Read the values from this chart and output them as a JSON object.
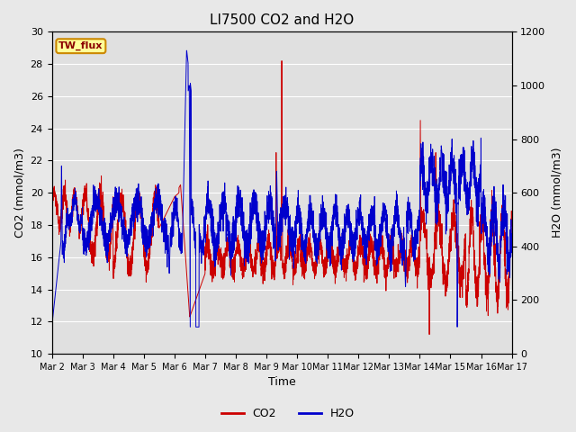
{
  "title": "LI7500 CO2 and H2O",
  "xlabel": "Time",
  "ylabel_left": "CO2 (mmol/m3)",
  "ylabel_right": "H2O (mmol/m3)",
  "ylim_left": [
    10,
    30
  ],
  "ylim_right": [
    0,
    1200
  ],
  "yticks_left": [
    10,
    12,
    14,
    16,
    18,
    20,
    22,
    24,
    26,
    28,
    30
  ],
  "yticks_right": [
    0,
    200,
    400,
    600,
    800,
    1000,
    1200
  ],
  "xtick_labels": [
    "Mar 2",
    "Mar 3",
    "Mar 4",
    "Mar 5",
    "Mar 6",
    "Mar 7",
    "Mar 8",
    "Mar 9",
    "Mar 10",
    "Mar 11",
    "Mar 12",
    "Mar 13",
    "Mar 14",
    "Mar 15",
    "Mar 16",
    "Mar 17"
  ],
  "co2_color": "#cc0000",
  "h2o_color": "#0000cc",
  "fig_bg_color": "#e8e8e8",
  "plot_bg_color": "#e0e0e0",
  "grid_color": "#ffffff",
  "annotation_text": "TW_flux",
  "annotation_bg": "#ffff99",
  "annotation_border": "#cc8800",
  "legend_co2": "CO2",
  "legend_h2o": "H2O",
  "linewidth": 0.7,
  "title_fontsize": 11
}
